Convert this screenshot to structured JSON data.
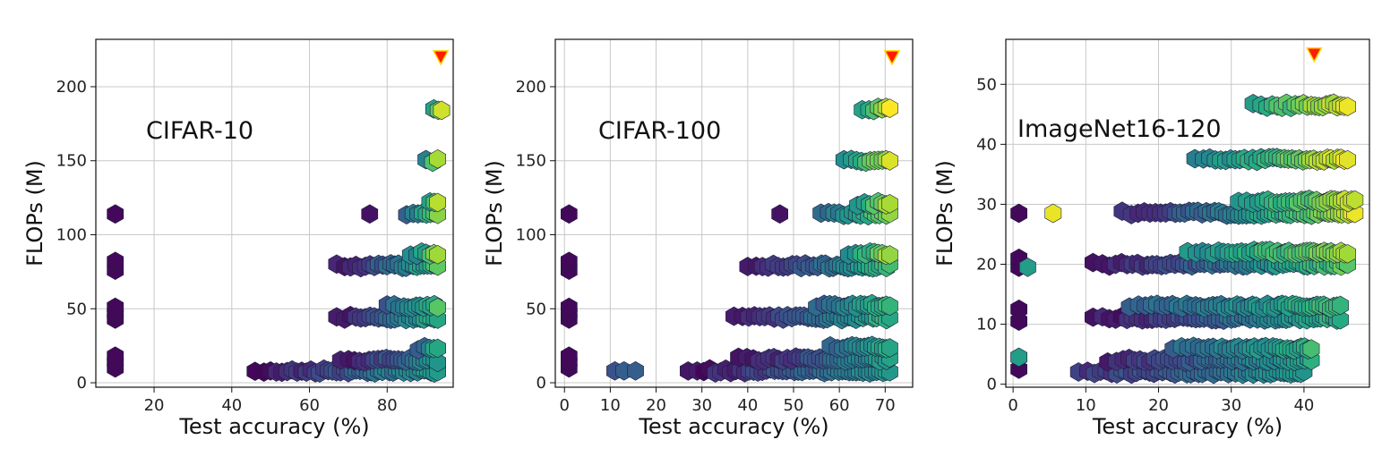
{
  "chart_data": [
    {
      "type": "scatter",
      "title": "CIFAR-10",
      "xlabel": "Test accuracy (%)",
      "ylabel": "FLOPs (M)",
      "xlim": [
        5,
        97
      ],
      "ylim": [
        -3,
        232
      ],
      "xticks": [
        20,
        40,
        60,
        80
      ],
      "yticks": [
        0,
        50,
        100,
        150,
        200
      ],
      "grid": true,
      "best": {
        "x": 93.8,
        "y": 220
      },
      "clusters": [
        {
          "y": 8,
          "x_range": [
            46,
            93
          ],
          "color_range": [
            0.05,
            0.55
          ]
        },
        {
          "y": 15,
          "x_range": [
            68,
            93
          ],
          "color_range": [
            0.05,
            0.5
          ]
        },
        {
          "y": 23,
          "x_range": [
            88,
            93
          ],
          "color_range": [
            0.3,
            0.65
          ]
        },
        {
          "y": 44,
          "x_range": [
            67,
            93
          ],
          "color_range": [
            0.05,
            0.65
          ]
        },
        {
          "y": 52,
          "x_range": [
            80,
            93
          ],
          "color_range": [
            0.3,
            0.7
          ]
        },
        {
          "y": 79,
          "x_range": [
            67,
            93
          ],
          "color_range": [
            0.05,
            0.7
          ]
        },
        {
          "y": 87,
          "x_range": [
            86,
            93
          ],
          "color_range": [
            0.45,
            0.8
          ]
        },
        {
          "y": 114,
          "x_range": [
            85,
            93
          ],
          "color_range": [
            0.35,
            0.8
          ]
        },
        {
          "y": 121,
          "x_range": [
            91,
            93
          ],
          "color_range": [
            0.55,
            0.9
          ]
        },
        {
          "y": 150,
          "x_range": [
            90,
            93
          ],
          "color_range": [
            0.5,
            0.9
          ]
        },
        {
          "y": 185,
          "x_range": [
            92,
            94
          ],
          "color_range": [
            0.55,
            0.95
          ]
        }
      ],
      "outliers": [
        {
          "x": 10,
          "y": 10,
          "c": 0.02
        },
        {
          "x": 10,
          "y": 14,
          "c": 0.02
        },
        {
          "x": 10,
          "y": 18,
          "c": 0.02
        },
        {
          "x": 10,
          "y": 43,
          "c": 0.02
        },
        {
          "x": 10,
          "y": 47,
          "c": 0.02
        },
        {
          "x": 10,
          "y": 51,
          "c": 0.02
        },
        {
          "x": 10,
          "y": 76,
          "c": 0.02
        },
        {
          "x": 10,
          "y": 82,
          "c": 0.02
        },
        {
          "x": 10,
          "y": 114,
          "c": 0.02
        },
        {
          "x": 75.5,
          "y": 114,
          "c": 0.05
        }
      ]
    },
    {
      "type": "scatter",
      "title": "CIFAR-100",
      "xlabel": "Test accuracy (%)",
      "ylabel": "FLOPs (M)",
      "xlim": [
        -2,
        76
      ],
      "ylim": [
        -3,
        232
      ],
      "xticks": [
        0,
        10,
        20,
        30,
        40,
        50,
        60,
        70
      ],
      "yticks": [
        0,
        50,
        100,
        150,
        200
      ],
      "grid": true,
      "best": {
        "x": 71.5,
        "y": 220
      },
      "clusters": [
        {
          "y": 8,
          "x_range": [
            27,
            71
          ],
          "color_range": [
            0.05,
            0.55
          ]
        },
        {
          "y": 16,
          "x_range": [
            38,
            71
          ],
          "color_range": [
            0.05,
            0.55
          ]
        },
        {
          "y": 24,
          "x_range": [
            58,
            71
          ],
          "color_range": [
            0.3,
            0.65
          ]
        },
        {
          "y": 44,
          "x_range": [
            37,
            71
          ],
          "color_range": [
            0.05,
            0.65
          ]
        },
        {
          "y": 52,
          "x_range": [
            55,
            71
          ],
          "color_range": [
            0.3,
            0.7
          ]
        },
        {
          "y": 79,
          "x_range": [
            40,
            71
          ],
          "color_range": [
            0.05,
            0.7
          ]
        },
        {
          "y": 87,
          "x_range": [
            62,
            71
          ],
          "color_range": [
            0.5,
            0.85
          ]
        },
        {
          "y": 114,
          "x_range": [
            56,
            71
          ],
          "color_range": [
            0.35,
            0.8
          ]
        },
        {
          "y": 121,
          "x_range": [
            64,
            71
          ],
          "color_range": [
            0.55,
            0.9
          ]
        },
        {
          "y": 150,
          "x_range": [
            61,
            71
          ],
          "color_range": [
            0.55,
            0.9
          ]
        },
        {
          "y": 185,
          "x_range": [
            65,
            71
          ],
          "color_range": [
            0.6,
            0.98
          ]
        }
      ],
      "outliers": [
        {
          "x": 1,
          "y": 10,
          "c": 0.02
        },
        {
          "x": 1,
          "y": 14,
          "c": 0.02
        },
        {
          "x": 1,
          "y": 18,
          "c": 0.02
        },
        {
          "x": 1,
          "y": 43,
          "c": 0.02
        },
        {
          "x": 1,
          "y": 47,
          "c": 0.02
        },
        {
          "x": 1,
          "y": 51,
          "c": 0.02
        },
        {
          "x": 1,
          "y": 76,
          "c": 0.02
        },
        {
          "x": 1,
          "y": 82,
          "c": 0.02
        },
        {
          "x": 1,
          "y": 114,
          "c": 0.02
        },
        {
          "x": 11,
          "y": 8,
          "c": 0.25
        },
        {
          "x": 13,
          "y": 8,
          "c": 0.3
        },
        {
          "x": 15.5,
          "y": 8,
          "c": 0.3
        },
        {
          "x": 47,
          "y": 114,
          "c": 0.05
        }
      ]
    },
    {
      "type": "scatter",
      "title": "ImageNet16-120",
      "xlabel": "Test accuracy (%)",
      "ylabel": "FLOPs (M)",
      "xlim": [
        -1,
        49
      ],
      "ylim": [
        -0.5,
        57.5
      ],
      "xticks": [
        0,
        10,
        20,
        30,
        40
      ],
      "yticks": [
        0,
        10,
        20,
        30,
        40,
        50
      ],
      "grid": true,
      "best": {
        "x": 41.4,
        "y": 55
      },
      "clusters": [
        {
          "y": 2,
          "x_range": [
            9,
            40
          ],
          "color_range": [
            0.15,
            0.55
          ]
        },
        {
          "y": 4,
          "x_range": [
            13,
            41
          ],
          "color_range": [
            0.1,
            0.6
          ]
        },
        {
          "y": 6,
          "x_range": [
            22,
            41
          ],
          "color_range": [
            0.35,
            0.65
          ]
        },
        {
          "y": 11,
          "x_range": [
            11,
            45
          ],
          "color_range": [
            0.05,
            0.65
          ]
        },
        {
          "y": 13,
          "x_range": [
            16,
            45
          ],
          "color_range": [
            0.3,
            0.7
          ]
        },
        {
          "y": 20,
          "x_range": [
            11,
            46
          ],
          "color_range": [
            0.05,
            0.75
          ]
        },
        {
          "y": 22,
          "x_range": [
            24,
            46
          ],
          "color_range": [
            0.5,
            0.85
          ]
        },
        {
          "y": 28.5,
          "x_range": [
            15,
            47
          ],
          "color_range": [
            0.1,
            0.95
          ]
        },
        {
          "y": 30.5,
          "x_range": [
            31,
            47
          ],
          "color_range": [
            0.55,
            0.9
          ]
        },
        {
          "y": 37.5,
          "x_range": [
            25,
            46
          ],
          "color_range": [
            0.45,
            0.98
          ]
        },
        {
          "y": 46.5,
          "x_range": [
            33,
            46
          ],
          "color_range": [
            0.6,
            0.98
          ]
        }
      ],
      "outliers": [
        {
          "x": 0.8,
          "y": 2.5,
          "c": 0.02
        },
        {
          "x": 0.8,
          "y": 4.5,
          "c": 0.55
        },
        {
          "x": 0.8,
          "y": 10.5,
          "c": 0.02
        },
        {
          "x": 0.8,
          "y": 12.5,
          "c": 0.02
        },
        {
          "x": 0.8,
          "y": 19.5,
          "c": 0.02
        },
        {
          "x": 0.8,
          "y": 21,
          "c": 0.02
        },
        {
          "x": 0.8,
          "y": 28.5,
          "c": 0.02
        },
        {
          "x": 2,
          "y": 19.5,
          "c": 0.55
        },
        {
          "x": 5.5,
          "y": 28.5,
          "c": 0.97
        }
      ]
    }
  ]
}
